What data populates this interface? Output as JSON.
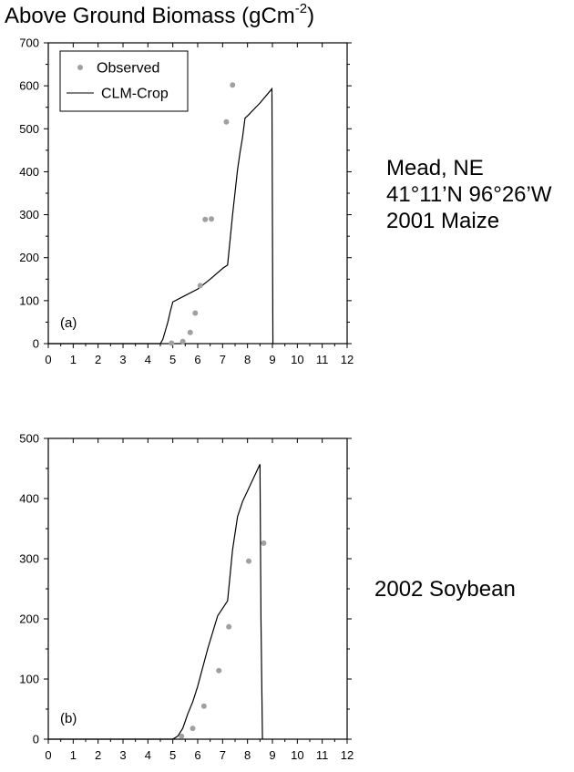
{
  "title": {
    "main": "Above Ground Biomass (gCm",
    "sup": "-2",
    "close": ")"
  },
  "site_labels": {
    "panel_a": [
      "Mead, NE",
      "41°11’N 96°26’W",
      "2001 Maize"
    ],
    "panel_b": [
      "2002 Soybean"
    ]
  },
  "legend": {
    "observed": "Observed",
    "model": "CLM-Crop"
  },
  "colors": {
    "observed": "#a0a0a0",
    "model": "#000000",
    "axis": "#000000"
  },
  "chart_data": [
    {
      "type": "line",
      "panel_label": "(a)",
      "xlim": [
        0,
        12
      ],
      "ylim": [
        0,
        700
      ],
      "x_ticks": [
        0,
        1,
        2,
        3,
        4,
        5,
        6,
        7,
        8,
        9,
        10,
        11,
        12
      ],
      "y_ticks": [
        0,
        100,
        200,
        300,
        400,
        500,
        600,
        700
      ],
      "legend_position": "top-left",
      "series": [
        {
          "name": "CLM-Crop",
          "kind": "line",
          "x": [
            0,
            4.5,
            4.6,
            4.7,
            4.8,
            4.9,
            5.0,
            5.5,
            6.0,
            6.5,
            7.0,
            7.2,
            7.4,
            7.6,
            7.7,
            7.8,
            7.9,
            8.0,
            8.5,
            8.98,
            9.02
          ],
          "y": [
            0,
            0,
            10,
            30,
            50,
            75,
            97,
            112,
            127,
            150,
            175,
            183,
            300,
            405,
            445,
            480,
            525,
            530,
            560,
            593,
            0
          ]
        },
        {
          "name": "Observed",
          "kind": "scatter",
          "x": [
            4.95,
            5.4,
            5.7,
            5.9,
            6.1,
            6.3,
            6.55,
            7.15,
            7.4
          ],
          "y": [
            1,
            5,
            26,
            71,
            135,
            289,
            290,
            516,
            602
          ]
        }
      ]
    },
    {
      "type": "line",
      "panel_label": "(b)",
      "xlim": [
        0,
        12
      ],
      "ylim": [
        0,
        500
      ],
      "x_ticks": [
        0,
        1,
        2,
        3,
        4,
        5,
        6,
        7,
        8,
        9,
        10,
        11,
        12
      ],
      "y_ticks": [
        0,
        100,
        200,
        300,
        400,
        500
      ],
      "series": [
        {
          "name": "CLM-Crop",
          "kind": "line",
          "x": [
            0,
            5.0,
            5.2,
            5.4,
            5.6,
            5.8,
            6.0,
            6.4,
            6.8,
            7.2,
            7.4,
            7.6,
            7.8,
            8.5,
            8.54,
            8.6
          ],
          "y": [
            0,
            0,
            5,
            18,
            42,
            62,
            88,
            150,
            205,
            230,
            315,
            370,
            395,
            457,
            200,
            0
          ]
        },
        {
          "name": "Observed",
          "kind": "scatter",
          "x": [
            5.35,
            5.8,
            6.25,
            6.85,
            7.25,
            8.05,
            8.65
          ],
          "y": [
            5,
            18,
            55,
            114,
            187,
            296,
            326
          ]
        }
      ]
    }
  ]
}
